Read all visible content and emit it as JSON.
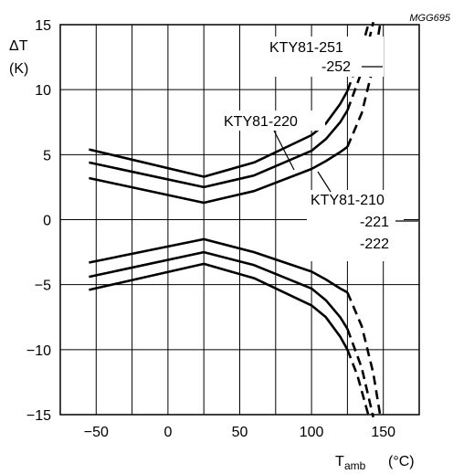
{
  "chart_data": {
    "type": "line",
    "code": "MGG695",
    "ylabel_symbol": "ΔT",
    "ylabel_unit": "(K)",
    "xlabel_main": "T",
    "xlabel_sub": "amb",
    "xlabel_unit": "(°C)",
    "xlim": [
      -75,
      175
    ],
    "ylim": [
      -15,
      15
    ],
    "grid": true,
    "x_ticks": [
      -50,
      0,
      50,
      100,
      150
    ],
    "x_tick_labels": [
      "−50",
      "0",
      "50",
      "100",
      "150"
    ],
    "y_ticks": [
      -15,
      -10,
      -5,
      0,
      5,
      10,
      15
    ],
    "y_tick_labels": [
      "−15",
      "−10",
      "−5",
      "0",
      "5",
      "10",
      "15"
    ],
    "series": [
      {
        "solid": [
          [
            -55,
            5.4
          ],
          [
            25,
            3.3
          ],
          [
            60,
            4.4
          ],
          [
            100,
            6.5
          ],
          [
            110,
            7.4
          ],
          [
            120,
            8.9
          ],
          [
            125,
            9.9
          ]
        ],
        "dashed": [
          [
            125,
            9.9
          ],
          [
            132,
            12.0
          ],
          [
            140,
            15.2
          ]
        ]
      },
      {
        "solid": [
          [
            -55,
            4.4
          ],
          [
            25,
            2.5
          ],
          [
            60,
            3.4
          ],
          [
            100,
            5.3
          ],
          [
            110,
            6.2
          ],
          [
            120,
            7.5
          ],
          [
            125,
            8.4
          ]
        ],
        "dashed": [
          [
            125,
            8.4
          ],
          [
            135,
            11.4
          ],
          [
            143,
            15.2
          ]
        ]
      },
      {
        "solid": [
          [
            -55,
            3.2
          ],
          [
            25,
            1.3
          ],
          [
            60,
            2.2
          ],
          [
            100,
            3.9
          ],
          [
            110,
            4.5
          ],
          [
            120,
            5.2
          ],
          [
            125,
            5.6
          ]
        ],
        "dashed": [
          [
            125,
            5.6
          ],
          [
            135,
            8.2
          ],
          [
            143,
            11.8
          ],
          [
            148,
            15.2
          ]
        ]
      },
      {
        "solid": [
          [
            -55,
            -3.3
          ],
          [
            25,
            -1.5
          ],
          [
            60,
            -2.5
          ],
          [
            100,
            -4.0
          ],
          [
            110,
            -4.6
          ],
          [
            120,
            -5.3
          ],
          [
            125,
            -5.6
          ]
        ],
        "dashed": [
          [
            125,
            -5.6
          ],
          [
            135,
            -8.2
          ],
          [
            143,
            -11.8
          ],
          [
            148,
            -15.2
          ]
        ]
      },
      {
        "solid": [
          [
            -55,
            -4.4
          ],
          [
            25,
            -2.5
          ],
          [
            60,
            -3.5
          ],
          [
            100,
            -5.3
          ],
          [
            110,
            -6.2
          ],
          [
            120,
            -7.5
          ],
          [
            125,
            -8.4
          ]
        ],
        "dashed": [
          [
            125,
            -8.4
          ],
          [
            135,
            -11.4
          ],
          [
            143,
            -15.2
          ]
        ]
      },
      {
        "solid": [
          [
            -55,
            -5.4
          ],
          [
            25,
            -3.4
          ],
          [
            60,
            -4.5
          ],
          [
            100,
            -6.6
          ],
          [
            110,
            -7.5
          ],
          [
            120,
            -9.0
          ],
          [
            125,
            -10.0
          ]
        ],
        "dashed": [
          [
            125,
            -10.0
          ],
          [
            132,
            -12.0
          ],
          [
            140,
            -15.2
          ]
        ]
      }
    ],
    "annotations": {
      "upper_1": "KTY81-251",
      "upper_2": "-252",
      "middle": "KTY81-220",
      "lower_1": "KTY81-210",
      "lower_2": "-221",
      "lower_3": "-222"
    }
  }
}
